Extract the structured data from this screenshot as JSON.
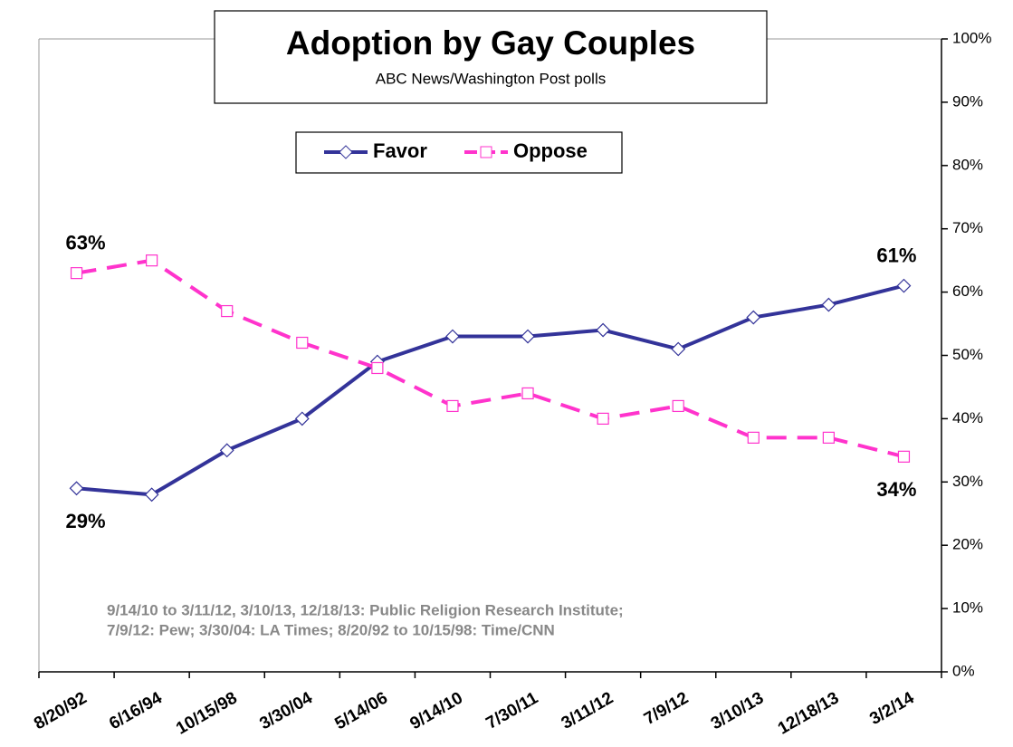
{
  "chart_data": {
    "type": "line",
    "title": "Adoption by Gay Couples",
    "subtitle": "ABC News/Washington  Post polls",
    "categories": [
      "8/20/92",
      "6/16/94",
      "10/15/98",
      "3/30/04",
      "5/14/06",
      "9/14/10",
      "7/30/11",
      "3/11/12",
      "7/9/12",
      "3/10/13",
      "12/18/13",
      "3/2/14"
    ],
    "series": [
      {
        "name": "Favor",
        "color": "#333399",
        "values": [
          29,
          28,
          35,
          40,
          49,
          53,
          53,
          54,
          51,
          56,
          58,
          61
        ],
        "value_labels": [
          "29%",
          null,
          null,
          null,
          null,
          null,
          null,
          null,
          null,
          null,
          null,
          "61%"
        ]
      },
      {
        "name": "Oppose",
        "color": "#ff33cc",
        "values": [
          63,
          65,
          57,
          52,
          48,
          42,
          44,
          40,
          42,
          37,
          37,
          34
        ],
        "value_labels": [
          "63%",
          null,
          null,
          null,
          null,
          null,
          null,
          null,
          null,
          null,
          null,
          "34%"
        ]
      }
    ],
    "ylim": [
      0,
      100
    ],
    "yticks": [
      {
        "value": 0,
        "label": "0%"
      },
      {
        "value": 10,
        "label": "10%"
      },
      {
        "value": 20,
        "label": "20%"
      },
      {
        "value": 30,
        "label": "30%"
      },
      {
        "value": 40,
        "label": "40%"
      },
      {
        "value": 50,
        "label": "50%"
      },
      {
        "value": 60,
        "label": "60%"
      },
      {
        "value": 70,
        "label": "70%"
      },
      {
        "value": 80,
        "label": "80%"
      },
      {
        "value": 90,
        "label": "90%"
      },
      {
        "value": 100,
        "label": "100%"
      }
    ],
    "axis_side": "right",
    "legend": "top",
    "notes": [
      "9/14/10 to 3/11/12, 3/10/13, 12/18/13: Public Religion Research Institute;",
      "7/9/12: Pew; 3/30/04: LA Times; 8/20/92 to 10/15/98: Time/CNN"
    ]
  }
}
